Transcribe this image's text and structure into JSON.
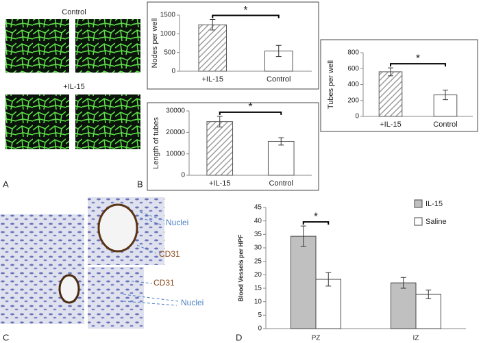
{
  "panel_labels": [
    "A",
    "B",
    "C",
    "D"
  ],
  "image_labels": {
    "control": "Control",
    "il15": "+IL-15"
  },
  "annotations": {
    "nuclei_top": "Nuclei",
    "cd31_top": "CD31",
    "cd31_bottom": "CD31",
    "nuclei_bottom": "Nuclei"
  },
  "chart_data": [
    {
      "type": "bar",
      "y_label": "Nodes per well",
      "categories": [
        "+IL-15",
        "Control"
      ],
      "values": [
        1240,
        540
      ],
      "errors": [
        140,
        150
      ],
      "colors": [
        "#9e9e9e",
        "#ffffff"
      ],
      "hatch": [
        true,
        false
      ],
      "ylim": [
        0,
        1500
      ],
      "yticks": [
        0,
        500,
        1000,
        1500
      ],
      "significance": "*"
    },
    {
      "type": "bar",
      "y_label": "Length of tubes",
      "categories": [
        "+IL-15",
        "Control"
      ],
      "values": [
        25000,
        15800
      ],
      "errors": [
        2500,
        1700
      ],
      "colors": [
        "#9e9e9e",
        "#ffffff"
      ],
      "hatch": [
        true,
        false
      ],
      "ylim": [
        0,
        30000
      ],
      "yticks": [
        0,
        10000,
        20000,
        30000
      ],
      "significance": "*"
    },
    {
      "type": "bar",
      "y_label": "Tubes per well",
      "categories": [
        "+IL-15",
        "Control"
      ],
      "values": [
        560,
        270
      ],
      "errors": [
        50,
        60
      ],
      "colors": [
        "#9e9e9e",
        "#ffffff"
      ],
      "hatch": [
        true,
        false
      ],
      "ylim": [
        0,
        800
      ],
      "yticks": [
        0,
        200,
        400,
        600,
        800
      ],
      "significance": "*"
    },
    {
      "type": "grouped_bar",
      "y_label": "Blood Vessels per HPF",
      "categories": [
        "PZ",
        "IZ"
      ],
      "series": [
        {
          "name": "IL-15",
          "color": "#c0c0c0",
          "values": [
            34.3,
            17
          ],
          "errors": [
            3.8,
            2
          ]
        },
        {
          "name": "Saline",
          "color": "#ffffff",
          "values": [
            18.3,
            12.7
          ],
          "errors": [
            2.5,
            1.6
          ]
        }
      ],
      "ylim": [
        0,
        45
      ],
      "yticks": [
        0,
        5,
        10,
        15,
        20,
        25,
        30,
        35,
        40,
        45
      ],
      "legend": "top-right",
      "significance": "*"
    }
  ]
}
